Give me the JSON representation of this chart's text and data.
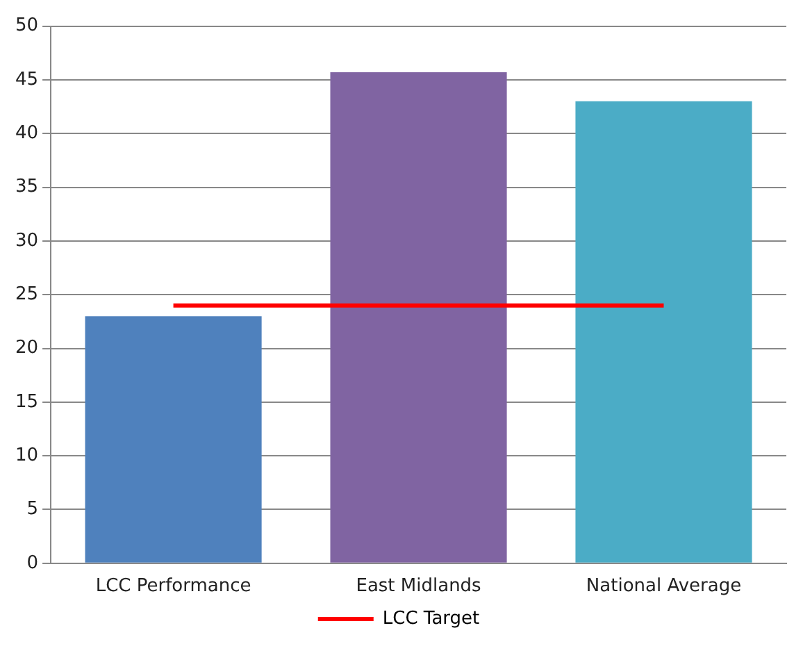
{
  "chart_data": {
    "type": "bar",
    "categories": [
      "LCC Performance",
      "East Midlands",
      "National Average"
    ],
    "series": [
      {
        "colors": [
          "#4f81bd",
          "#8064a2",
          "#4bacc6"
        ],
        "values": [
          23,
          45.7,
          43
        ]
      },
      {
        "name": "LCC Target",
        "type": "line",
        "color": "#ff0000",
        "marker": "none",
        "values": [
          24,
          24,
          24
        ]
      }
    ],
    "ylim": [
      0,
      50
    ],
    "yticks": [
      0,
      5,
      10,
      15,
      20,
      25,
      30,
      35,
      40,
      45,
      50
    ],
    "grid": "y",
    "legend": "bottom"
  }
}
